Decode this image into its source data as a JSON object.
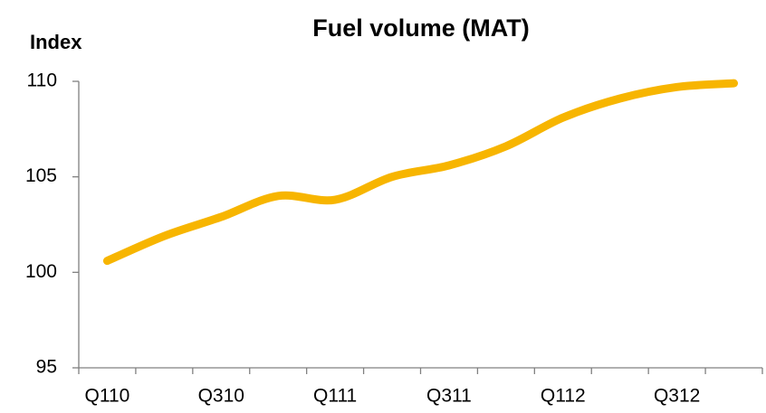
{
  "chart_data": {
    "type": "line",
    "title": "Fuel volume (MAT)",
    "y_label": "Index",
    "categories": [
      "Q110",
      null,
      "Q310",
      null,
      "Q111",
      null,
      "Q311",
      null,
      "Q112",
      null,
      "Q312",
      null
    ],
    "series": [
      {
        "name": "Fuel volume",
        "color": "#f7b500",
        "values": [
          100.6,
          101.9,
          102.9,
          104.0,
          103.8,
          105.0,
          105.6,
          106.6,
          108.1,
          109.1,
          109.7,
          109.9
        ]
      }
    ],
    "ylim": [
      95,
      110
    ],
    "yticks": [
      95,
      100,
      105,
      110
    ],
    "grid": false
  }
}
